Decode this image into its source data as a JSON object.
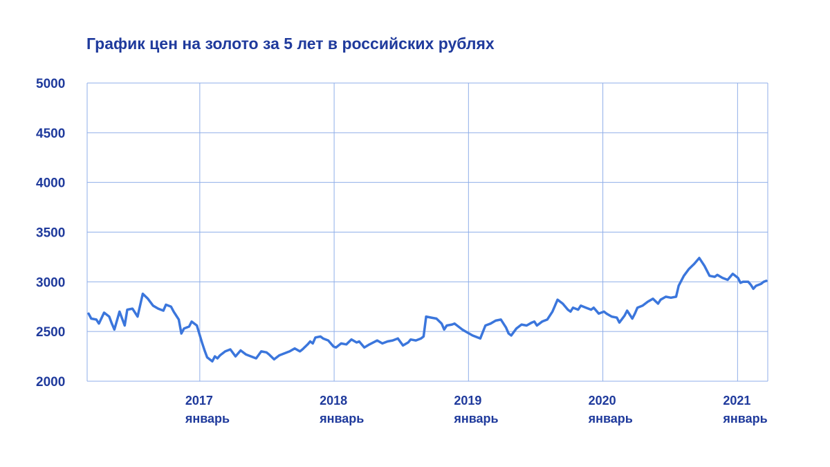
{
  "chart_data": {
    "type": "line",
    "title": "График цен на золото за 5 лет в российских рублях",
    "xlabel": "",
    "ylabel": "",
    "ylim": [
      2000,
      5000
    ],
    "xlim": [
      "2016-03-01",
      "2021-03-24"
    ],
    "grid": true,
    "legend": "none",
    "y_ticks": [
      "2000",
      "2500",
      "3000",
      "3500",
      "4000",
      "4500",
      "5000"
    ],
    "x_ticks": [
      {
        "date": "2017-01-01",
        "year": "2017",
        "month": "январь"
      },
      {
        "date": "2018-01-01",
        "year": "2018",
        "month": "январь"
      },
      {
        "date": "2019-01-01",
        "year": "2019",
        "month": "январь"
      },
      {
        "date": "2020-01-01",
        "year": "2020",
        "month": "январь"
      },
      {
        "date": "2021-01-01",
        "year": "2021",
        "month": "январь"
      }
    ],
    "series": [
      {
        "color": "#3b76dc",
        "points": [
          [
            "2016-03-05",
            2680
          ],
          [
            "2016-03-12",
            2630
          ],
          [
            "2016-03-26",
            2620
          ],
          [
            "2016-04-02",
            2580
          ],
          [
            "2016-04-16",
            2690
          ],
          [
            "2016-04-30",
            2650
          ],
          [
            "2016-05-07",
            2580
          ],
          [
            "2016-05-14",
            2520
          ],
          [
            "2016-05-28",
            2700
          ],
          [
            "2016-06-11",
            2560
          ],
          [
            "2016-06-18",
            2720
          ],
          [
            "2016-07-02",
            2730
          ],
          [
            "2016-07-16",
            2650
          ],
          [
            "2016-07-30",
            2880
          ],
          [
            "2016-08-13",
            2830
          ],
          [
            "2016-08-27",
            2760
          ],
          [
            "2016-09-10",
            2730
          ],
          [
            "2016-09-24",
            2710
          ],
          [
            "2016-10-01",
            2770
          ],
          [
            "2016-10-15",
            2750
          ],
          [
            "2016-10-22",
            2700
          ],
          [
            "2016-11-05",
            2620
          ],
          [
            "2016-11-12",
            2480
          ],
          [
            "2016-11-19",
            2530
          ],
          [
            "2016-12-03",
            2550
          ],
          [
            "2016-12-10",
            2600
          ],
          [
            "2016-12-24",
            2560
          ],
          [
            "2017-01-07",
            2390
          ],
          [
            "2017-01-14",
            2310
          ],
          [
            "2017-01-21",
            2240
          ],
          [
            "2017-02-04",
            2200
          ],
          [
            "2017-02-11",
            2250
          ],
          [
            "2017-02-18",
            2230
          ],
          [
            "2017-02-25",
            2260
          ],
          [
            "2017-03-11",
            2300
          ],
          [
            "2017-03-25",
            2320
          ],
          [
            "2017-04-08",
            2250
          ],
          [
            "2017-04-22",
            2310
          ],
          [
            "2017-05-06",
            2270
          ],
          [
            "2017-05-20",
            2250
          ],
          [
            "2017-06-03",
            2230
          ],
          [
            "2017-06-17",
            2300
          ],
          [
            "2017-07-01",
            2290
          ],
          [
            "2017-07-08",
            2270
          ],
          [
            "2017-07-22",
            2220
          ],
          [
            "2017-08-05",
            2260
          ],
          [
            "2017-08-19",
            2280
          ],
          [
            "2017-08-26",
            2290
          ],
          [
            "2017-09-02",
            2300
          ],
          [
            "2017-09-16",
            2330
          ],
          [
            "2017-09-30",
            2300
          ],
          [
            "2017-10-07",
            2320
          ],
          [
            "2017-10-21",
            2370
          ],
          [
            "2017-10-28",
            2400
          ],
          [
            "2017-11-04",
            2380
          ],
          [
            "2017-11-11",
            2440
          ],
          [
            "2017-11-25",
            2450
          ],
          [
            "2017-12-02",
            2430
          ],
          [
            "2017-12-16",
            2410
          ],
          [
            "2017-12-30",
            2350
          ],
          [
            "2018-01-06",
            2340
          ],
          [
            "2018-01-20",
            2380
          ],
          [
            "2018-02-03",
            2370
          ],
          [
            "2018-02-17",
            2420
          ],
          [
            "2018-03-03",
            2390
          ],
          [
            "2018-03-10",
            2400
          ],
          [
            "2018-03-24",
            2340
          ],
          [
            "2018-04-07",
            2370
          ],
          [
            "2018-04-28",
            2410
          ],
          [
            "2018-05-12",
            2380
          ],
          [
            "2018-05-26",
            2400
          ],
          [
            "2018-06-09",
            2410
          ],
          [
            "2018-06-23",
            2430
          ],
          [
            "2018-07-07",
            2360
          ],
          [
            "2018-07-21",
            2390
          ],
          [
            "2018-07-28",
            2420
          ],
          [
            "2018-08-11",
            2410
          ],
          [
            "2018-08-25",
            2430
          ],
          [
            "2018-09-01",
            2450
          ],
          [
            "2018-09-08",
            2650
          ],
          [
            "2018-09-22",
            2640
          ],
          [
            "2018-10-06",
            2630
          ],
          [
            "2018-10-20",
            2580
          ],
          [
            "2018-10-27",
            2520
          ],
          [
            "2018-11-03",
            2560
          ],
          [
            "2018-11-17",
            2570
          ],
          [
            "2018-11-24",
            2580
          ],
          [
            "2018-12-01",
            2560
          ],
          [
            "2018-12-15",
            2520
          ],
          [
            "2018-12-29",
            2490
          ],
          [
            "2019-01-12",
            2460
          ],
          [
            "2019-01-26",
            2440
          ],
          [
            "2019-02-02",
            2430
          ],
          [
            "2019-02-16",
            2560
          ],
          [
            "2019-03-02",
            2580
          ],
          [
            "2019-03-16",
            2610
          ],
          [
            "2019-03-30",
            2620
          ],
          [
            "2019-04-13",
            2540
          ],
          [
            "2019-04-20",
            2480
          ],
          [
            "2019-04-27",
            2460
          ],
          [
            "2019-05-11",
            2530
          ],
          [
            "2019-05-25",
            2570
          ],
          [
            "2019-06-08",
            2560
          ],
          [
            "2019-06-22",
            2590
          ],
          [
            "2019-06-29",
            2600
          ],
          [
            "2019-07-06",
            2560
          ],
          [
            "2019-07-20",
            2600
          ],
          [
            "2019-08-03",
            2620
          ],
          [
            "2019-08-17",
            2700
          ],
          [
            "2019-08-31",
            2820
          ],
          [
            "2019-09-14",
            2780
          ],
          [
            "2019-09-28",
            2720
          ],
          [
            "2019-10-05",
            2700
          ],
          [
            "2019-10-12",
            2740
          ],
          [
            "2019-10-26",
            2720
          ],
          [
            "2019-11-02",
            2760
          ],
          [
            "2019-11-16",
            2740
          ],
          [
            "2019-11-30",
            2720
          ],
          [
            "2019-12-07",
            2740
          ],
          [
            "2019-12-21",
            2680
          ],
          [
            "2020-01-04",
            2700
          ],
          [
            "2020-01-11",
            2680
          ],
          [
            "2020-01-25",
            2650
          ],
          [
            "2020-02-08",
            2640
          ],
          [
            "2020-02-15",
            2590
          ],
          [
            "2020-02-29",
            2660
          ],
          [
            "2020-03-07",
            2710
          ],
          [
            "2020-03-21",
            2630
          ],
          [
            "2020-03-28",
            2680
          ],
          [
            "2020-04-04",
            2740
          ],
          [
            "2020-04-18",
            2760
          ],
          [
            "2020-05-02",
            2800
          ],
          [
            "2020-05-16",
            2830
          ],
          [
            "2020-05-30",
            2780
          ],
          [
            "2020-06-06",
            2820
          ],
          [
            "2020-06-20",
            2850
          ],
          [
            "2020-07-04",
            2840
          ],
          [
            "2020-07-18",
            2850
          ],
          [
            "2020-07-25",
            2960
          ],
          [
            "2020-08-08",
            3060
          ],
          [
            "2020-08-22",
            3130
          ],
          [
            "2020-09-05",
            3180
          ],
          [
            "2020-09-19",
            3240
          ],
          [
            "2020-10-03",
            3160
          ],
          [
            "2020-10-17",
            3060
          ],
          [
            "2020-10-31",
            3050
          ],
          [
            "2020-11-07",
            3070
          ],
          [
            "2020-11-21",
            3040
          ],
          [
            "2020-12-05",
            3020
          ],
          [
            "2020-12-19",
            3080
          ],
          [
            "2021-01-02",
            3040
          ],
          [
            "2021-01-09",
            2990
          ],
          [
            "2021-01-16",
            3000
          ],
          [
            "2021-01-30",
            3000
          ],
          [
            "2021-02-06",
            2970
          ],
          [
            "2021-02-13",
            2930
          ],
          [
            "2021-02-20",
            2960
          ],
          [
            "2021-03-06",
            2980
          ],
          [
            "2021-03-13",
            3000
          ],
          [
            "2021-03-20",
            3010
          ]
        ]
      }
    ]
  }
}
